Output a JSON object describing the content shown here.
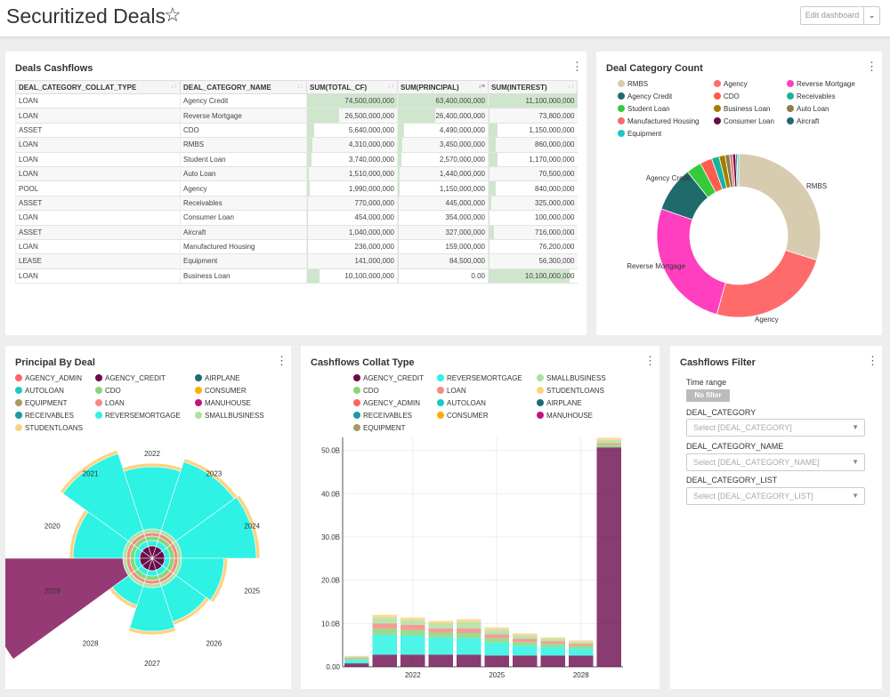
{
  "header": {
    "title": "Securitized Deals",
    "star": "☆",
    "edit_label": "Edit dashboard",
    "caret": "⌄"
  },
  "cashflows_table": {
    "title": "Deals Cashflows",
    "columns": [
      "DEAL_CATEGORY_COLLAT_TYPE",
      "DEAL_CATEGORY_NAME",
      "SUM(TOTAL_CF)",
      "SUM(PRINCIPAL)",
      "SUM(INTEREST)"
    ],
    "rows": [
      {
        "type": "LOAN",
        "name": "Agency Credit",
        "total": "74,500,000,000",
        "principal": "63,400,000,000",
        "interest": "11,100,000,000",
        "tf": 1.0,
        "pf": 1.0,
        "if": 1.0
      },
      {
        "type": "LOAN",
        "name": "Reverse Mortgage",
        "total": "26,500,000,000",
        "principal": "26,400,000,000",
        "interest": "73,800,000",
        "tf": 0.356,
        "pf": 0.416,
        "if": 0.007
      },
      {
        "type": "ASSET",
        "name": "CDO",
        "total": "5,640,000,000",
        "principal": "4,490,000,000",
        "interest": "1,150,000,000",
        "tf": 0.076,
        "pf": 0.071,
        "if": 0.104
      },
      {
        "type": "LOAN",
        "name": "RMBS",
        "total": "4,310,000,000",
        "principal": "3,450,000,000",
        "interest": "860,000,000",
        "tf": 0.058,
        "pf": 0.054,
        "if": 0.077
      },
      {
        "type": "LOAN",
        "name": "Student Loan",
        "total": "3,740,000,000",
        "principal": "2,570,000,000",
        "interest": "1,170,000,000",
        "tf": 0.05,
        "pf": 0.041,
        "if": 0.105
      },
      {
        "type": "LOAN",
        "name": "Auto Loan",
        "total": "1,510,000,000",
        "principal": "1,440,000,000",
        "interest": "70,500,000",
        "tf": 0.02,
        "pf": 0.023,
        "if": 0.006
      },
      {
        "type": "POOL",
        "name": "Agency",
        "total": "1,990,000,000",
        "principal": "1,150,000,000",
        "interest": "840,000,000",
        "tf": 0.027,
        "pf": 0.018,
        "if": 0.076
      },
      {
        "type": "ASSET",
        "name": "Receivables",
        "total": "770,000,000",
        "principal": "445,000,000",
        "interest": "325,000,000",
        "tf": 0.01,
        "pf": 0.007,
        "if": 0.029
      },
      {
        "type": "LOAN",
        "name": "Consumer Loan",
        "total": "454,000,000",
        "principal": "354,000,000",
        "interest": "100,000,000",
        "tf": 0.006,
        "pf": 0.006,
        "if": 0.009
      },
      {
        "type": "ASSET",
        "name": "Aircraft",
        "total": "1,040,000,000",
        "principal": "327,000,000",
        "interest": "716,000,000",
        "tf": 0.014,
        "pf": 0.005,
        "if": 0.065
      },
      {
        "type": "LOAN",
        "name": "Manufactured Housing",
        "total": "236,000,000",
        "principal": "159,000,000",
        "interest": "76,200,000",
        "tf": 0.003,
        "pf": 0.003,
        "if": 0.007
      },
      {
        "type": "LEASE",
        "name": "Equipment",
        "total": "141,000,000",
        "principal": "84,500,000",
        "interest": "56,300,000",
        "tf": 0.002,
        "pf": 0.001,
        "if": 0.005
      },
      {
        "type": "LOAN",
        "name": "Business Loan",
        "total": "10,100,000,000",
        "principal": "0.00",
        "interest": "10,100,000,000",
        "tf": 0.136,
        "pf": 0.0,
        "if": 0.91
      }
    ]
  },
  "category_count": {
    "title": "Deal Category Count",
    "legend": [
      {
        "name": "RMBS",
        "color": "#d7ccb0"
      },
      {
        "name": "Agency",
        "color": "#ff6b6b"
      },
      {
        "name": "Reverse Mortgage",
        "color": "#ff3fbf"
      },
      {
        "name": "Agency Credit",
        "color": "#1f6b6b"
      },
      {
        "name": "CDO",
        "color": "#ff5c4d"
      },
      {
        "name": "Receivables",
        "color": "#19b29f"
      },
      {
        "name": "Student Loan",
        "color": "#35c93b"
      },
      {
        "name": "Business Loan",
        "color": "#a67c00"
      },
      {
        "name": "Auto Loan",
        "color": "#8c7e4a"
      },
      {
        "name": "Manufactured Housing",
        "color": "#f06f6f"
      },
      {
        "name": "Consumer Loan",
        "color": "#6b0b4b"
      },
      {
        "name": "Aircraft",
        "color": "#1e6b75"
      },
      {
        "name": "Equipment",
        "color": "#1ec8c8"
      }
    ],
    "labels": {
      "rmbs": "RMBS",
      "agency_credit": "Agency Credit",
      "reverse_mortgage": "Reverse Mortgage",
      "agency": "Agency"
    }
  },
  "principal_by_deal": {
    "title": "Principal By Deal",
    "legend": [
      {
        "name": "AGENCY_ADMIN",
        "color": "#ff6464"
      },
      {
        "name": "AGENCY_CREDIT",
        "color": "#6b0b4b"
      },
      {
        "name": "AIRPLANE",
        "color": "#1e6b75"
      },
      {
        "name": "AUTOLOAN",
        "color": "#1ec8c8"
      },
      {
        "name": "CDO",
        "color": "#88d67a"
      },
      {
        "name": "CONSUMER",
        "color": "#ffad00"
      },
      {
        "name": "EQUIPMENT",
        "color": "#a69a60"
      },
      {
        "name": "LOAN",
        "color": "#f28b82"
      },
      {
        "name": "MANUHOUSE",
        "color": "#c0157a"
      },
      {
        "name": "RECEIVABLES",
        "color": "#1a9aa6"
      },
      {
        "name": "REVERSEMORTGAGE",
        "color": "#2ef2e4"
      },
      {
        "name": "SMALLBUSINESS",
        "color": "#b0e0a0"
      },
      {
        "name": "STUDENTLOANS",
        "color": "#ffd280"
      }
    ],
    "years": [
      "2020",
      "2021",
      "2022",
      "2023",
      "2024",
      "2025",
      "2026",
      "2027",
      "2028",
      "2029"
    ]
  },
  "collat_type": {
    "title": "Cashflows Collat Type",
    "legend": [
      {
        "name": "AGENCY_CREDIT",
        "color": "#6b0b4b"
      },
      {
        "name": "REVERSEMORTGAGE",
        "color": "#2ef2e4"
      },
      {
        "name": "SMALLBUSINESS",
        "color": "#b0e0a0"
      },
      {
        "name": "CDO",
        "color": "#88d67a"
      },
      {
        "name": "LOAN",
        "color": "#f28b82"
      },
      {
        "name": "STUDENTLOANS",
        "color": "#ffd280"
      },
      {
        "name": "AGENCY_ADMIN",
        "color": "#ff6464"
      },
      {
        "name": "AUTOLOAN",
        "color": "#1ec8c8"
      },
      {
        "name": "AIRPLANE",
        "color": "#1e6b75"
      },
      {
        "name": "RECEIVABLES",
        "color": "#1a9aa6"
      },
      {
        "name": "CONSUMER",
        "color": "#ffad00"
      },
      {
        "name": "MANUHOUSE",
        "color": "#c0157a"
      },
      {
        "name": "EQUIPMENT",
        "color": "#a69a60"
      }
    ],
    "y_ticks": [
      "0.00",
      "10.0B",
      "20.0B",
      "30.0B",
      "40.0B",
      "50.0B"
    ],
    "x_ticks": [
      "2022",
      "2025",
      "2028"
    ]
  },
  "filter": {
    "title": "Cashflows Filter",
    "time_range_label": "Time range",
    "no_filter": "No filter",
    "fields": [
      {
        "label": "DEAL_CATEGORY",
        "placeholder": "Select [DEAL_CATEGORY]"
      },
      {
        "label": "DEAL_CATEGORY_NAME",
        "placeholder": "Select [DEAL_CATEGORY_NAME]"
      },
      {
        "label": "DEAL_CATEGORY_LIST",
        "placeholder": "Select [DEAL_CATEGORY_LIST]"
      }
    ]
  },
  "chart_data": [
    {
      "type": "pie",
      "title": "Deal Category Count",
      "categories": [
        "RMBS",
        "Agency",
        "Reverse Mortgage",
        "Agency Credit",
        "Student Loan",
        "CDO",
        "Receivables",
        "Business Loan",
        "Auto Loan",
        "Manufactured Housing",
        "Consumer Loan",
        "Aircraft",
        "Equipment"
      ],
      "values": [
        100,
        82,
        87,
        30,
        10,
        8,
        5,
        4,
        3,
        2,
        2,
        1,
        1
      ],
      "donut": true
    },
    {
      "type": "area",
      "title": "Principal By Deal",
      "polar": true,
      "categories": [
        "2020",
        "2021",
        "2022",
        "2023",
        "2024",
        "2025",
        "2026",
        "2027",
        "2028",
        "2029"
      ],
      "series": [
        {
          "name": "REVERSEMORTGAGE",
          "values": [
            40,
            65,
            50,
            58,
            60,
            34,
            30,
            35,
            16,
            0
          ]
        },
        {
          "name": "AGENCY_CREDIT",
          "values": [
            0,
            0,
            0,
            0,
            0,
            0,
            0,
            0,
            0,
            100
          ]
        }
      ]
    },
    {
      "type": "bar",
      "title": "Cashflows Collat Type",
      "stacked": true,
      "x": [
        "2020",
        "2021",
        "2022",
        "2023",
        "2024",
        "2025",
        "2026",
        "2027",
        "2028",
        "2029"
      ],
      "ylim": [
        0,
        53
      ],
      "series": [
        {
          "name": "AGENCY_CREDIT",
          "values": [
            0.8,
            2.8,
            2.8,
            2.8,
            2.8,
            2.6,
            2.6,
            2.6,
            2.6,
            50.7
          ]
        },
        {
          "name": "REVERSEMORTGAGE",
          "values": [
            0.8,
            4.6,
            4.4,
            4.0,
            3.8,
            3.0,
            2.3,
            2.0,
            1.6,
            0
          ]
        },
        {
          "name": "CDO",
          "values": [
            0.3,
            1.4,
            1.3,
            1.1,
            1.2,
            1.0,
            0.8,
            0.7,
            0.6,
            0.6
          ]
        },
        {
          "name": "LOAN",
          "values": [
            0.2,
            1.2,
            1.2,
            1.0,
            1.1,
            0.9,
            0.8,
            0.6,
            0.5,
            0.4
          ]
        },
        {
          "name": "SMALLBUSINESS",
          "values": [
            0.3,
            1.4,
            1.1,
            1.2,
            1.5,
            1.1,
            0.8,
            0.6,
            0.5,
            0.7
          ]
        },
        {
          "name": "STUDENTLOANS",
          "values": [
            0.1,
            0.6,
            0.6,
            0.5,
            0.6,
            0.5,
            0.4,
            0.3,
            0.3,
            0.5
          ]
        }
      ]
    }
  ]
}
